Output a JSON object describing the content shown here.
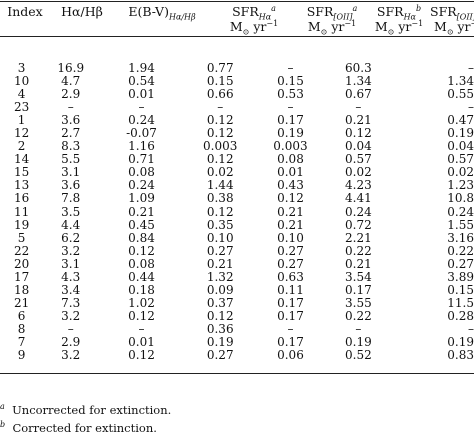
{
  "headers": {
    "index": "Index",
    "ratio": "Hα/Hβ",
    "ebv": "E(B-V)",
    "ebv_sub": "Hα/Hβ",
    "sfr_ha_a": "SFR",
    "sfr_ha_a_sub": "Hα",
    "sfr_ha_a_sup": "a",
    "sfr_oii_a": "SFR",
    "sfr_oii_a_sub": "[OII]",
    "sfr_oii_a_sup": "a",
    "sfr_ha_b": "SFR",
    "sfr_ha_b_sub": "Hα",
    "sfr_ha_b_sup": "b",
    "sfr_oii_b": "SFR",
    "sfr_oii_b_sub": "[OII]",
    "sfr_oii_b_sup": "b",
    "units": "M⊙ yr−1",
    "units_main": "M",
    "units_sub": "⊙",
    "units_yr": "yr",
    "units_sup": "−1"
  },
  "rows": [
    [
      "3",
      "16.9",
      "1.94",
      "0.77",
      "–",
      "60.3",
      "–"
    ],
    [
      "10",
      "4.7",
      "0.54",
      "0.15",
      "0.15",
      "1.34",
      "1.34"
    ],
    [
      "4",
      "2.9",
      "0.01",
      "0.66",
      "0.53",
      "0.67",
      "0.55"
    ],
    [
      "23",
      "–",
      "–",
      "–",
      "–",
      "–",
      "–"
    ],
    [
      "1",
      "3.6",
      "0.24",
      "0.12",
      "0.17",
      "0.21",
      "0.47"
    ],
    [
      "12",
      "2.7",
      "-0.07",
      "0.12",
      "0.19",
      "0.12",
      "0.19"
    ],
    [
      "2",
      "8.3",
      "1.16",
      "0.003",
      "0.003",
      "0.04",
      "0.04"
    ],
    [
      "14",
      "5.5",
      "0.71",
      "0.12",
      "0.08",
      "0.57",
      "0.57"
    ],
    [
      "15",
      "3.1",
      "0.08",
      "0.02",
      "0.01",
      "0.02",
      "0.02"
    ],
    [
      "13",
      "3.6",
      "0.24",
      "1.44",
      "0.43",
      "4.23",
      "1.23"
    ],
    [
      "16",
      "7.8",
      "1.09",
      "0.38",
      "0.12",
      "4.41",
      "10.8"
    ],
    [
      "11",
      "3.5",
      "0.21",
      "0.12",
      "0.21",
      "0.24",
      "0.24"
    ],
    [
      "19",
      "4.4",
      "0.45",
      "0.35",
      "0.21",
      "0.72",
      "1.55"
    ],
    [
      "5",
      "6.2",
      "0.84",
      "0.10",
      "0.10",
      "2.21",
      "3.16"
    ],
    [
      "22",
      "3.2",
      "0.12",
      "0.27",
      "0.27",
      "0.22",
      "0.22"
    ],
    [
      "20",
      "3.1",
      "0.08",
      "0.21",
      "0.27",
      "0.21",
      "0.27"
    ],
    [
      "17",
      "4.3",
      "0.44",
      "1.32",
      "0.63",
      "3.54",
      "3.89"
    ],
    [
      "18",
      "3.4",
      "0.18",
      "0.09",
      "0.11",
      "0.17",
      "0.15"
    ],
    [
      "21",
      "7.3",
      "1.02",
      "0.37",
      "0.17",
      "3.55",
      "11.5"
    ],
    [
      "6",
      "3.2",
      "0.12",
      "0.12",
      "0.17",
      "0.22",
      "0.28"
    ],
    [
      "8",
      "–",
      "–",
      "0.36",
      "–",
      "–",
      "–"
    ],
    [
      "7",
      "2.9",
      "0.01",
      "0.19",
      "0.17",
      "0.19",
      "0.19"
    ],
    [
      "9",
      "3.2",
      "0.12",
      "0.27",
      "0.06",
      "0.52",
      "0.83"
    ]
  ],
  "footnotes": [
    {
      "mark": "a",
      "text": "Uncorrected for extinction."
    },
    {
      "mark": "b",
      "text": "Corrected for extinction."
    }
  ]
}
